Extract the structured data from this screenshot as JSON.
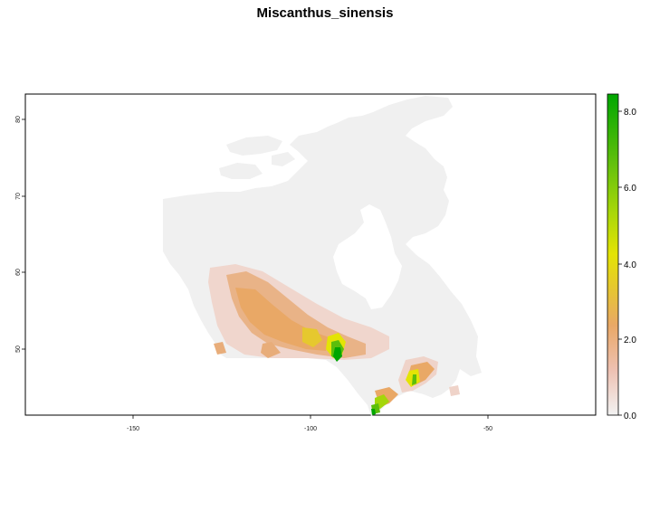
{
  "title": "Miscanthus_sinensis",
  "map": {
    "x_ticks": [
      {
        "value": -150,
        "label": "-150"
      },
      {
        "value": -100,
        "label": "-100"
      },
      {
        "value": -50,
        "label": "-50"
      }
    ],
    "y_ticks": [
      {
        "value": 50,
        "label": "50"
      },
      {
        "value": 60,
        "label": "60"
      },
      {
        "value": 70,
        "label": "70"
      },
      {
        "value": 80,
        "label": "80"
      }
    ],
    "xlim": [
      -180,
      -22
    ],
    "ylim": [
      41.5,
      83.5
    ]
  },
  "legend": {
    "range": [
      0,
      8.5
    ],
    "ticks": [
      {
        "value": 0,
        "label": "0.0"
      },
      {
        "value": 2,
        "label": "2.0"
      },
      {
        "value": 4,
        "label": "4.0"
      },
      {
        "value": 6,
        "label": "6.0"
      },
      {
        "value": 8,
        "label": "8.0"
      }
    ],
    "colors": [
      "#f2f2f2",
      "#eec1b2",
      "#e9a866",
      "#e6c82e",
      "#e4e405",
      "#a4d60a",
      "#5bbe0c",
      "#00a600"
    ]
  }
}
